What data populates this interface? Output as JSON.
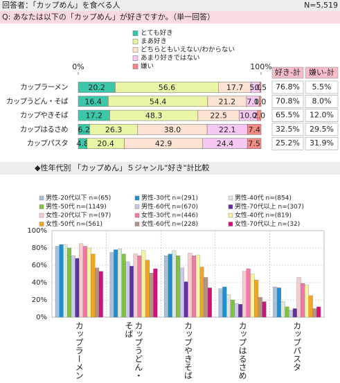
{
  "header": {
    "respondents": "回答者：「カップめん」を食べる人",
    "n": "N=5,519"
  },
  "question": "Q:  あなたは以下の「カップめん」が好きですか。（単一回答）",
  "chart_data": [
    {
      "type": "stacked",
      "categories": [
        "カップラーメン",
        "カップうどん・そば",
        "カップやきそば",
        "カップはるさめ",
        "カップパスタ"
      ],
      "xlim": [
        0,
        100
      ],
      "xticks": [
        {
          "value": 0,
          "label": "0%"
        },
        {
          "value": 100,
          "label": "100%"
        }
      ],
      "series": [
        {
          "name": "とても好き",
          "color": "#3cc8a8",
          "values": [
            20.2,
            16.4,
            17.2,
            6.2,
            4.8
          ],
          "value_labels": [
            "20.2",
            "16.4",
            "17.2",
            "6.2",
            "4.8"
          ]
        },
        {
          "name": "まあ好き",
          "color": "#eaf5a6",
          "values": [
            56.6,
            54.4,
            48.3,
            26.3,
            20.4
          ],
          "value_labels": [
            "56.6",
            "54.4",
            "48.3",
            "26.3",
            "20.4"
          ]
        },
        {
          "name": "どちらともいえない/わからない",
          "color": "#fde3d4",
          "values": [
            17.7,
            21.2,
            22.5,
            38.0,
            42.9
          ],
          "value_labels": [
            "17.7",
            "21.2",
            "22.5",
            "38.0",
            "42.9"
          ]
        },
        {
          "name": "あまり好きではない",
          "color": "#f7c8f2",
          "values": [
            5.0,
            7.0,
            10.0,
            22.1,
            24.4
          ],
          "value_labels": [
            "5.0",
            "7.0",
            "10.0",
            "22.1",
            "24.4"
          ]
        },
        {
          "name": "嫌い",
          "color": "#f28a86",
          "values": [
            0.5,
            1.0,
            2.0,
            7.4,
            7.5
          ],
          "value_labels": [
            "0.5",
            "1.0",
            "2.0",
            "7.4",
            "7.5"
          ]
        }
      ],
      "summary": {
        "headers": [
          "好き-計",
          "嫌い-計"
        ],
        "rows": [
          [
            "76.8%",
            "5.5%"
          ],
          [
            "70.8%",
            "8.0%"
          ],
          [
            "65.5%",
            "12.0%"
          ],
          [
            "32.5%",
            "29.5%"
          ],
          [
            "25.2%",
            "31.9%"
          ]
        ]
      }
    },
    {
      "type": "bar",
      "title": "◆性年代別 「カップめん」５ジャンル\"好き\"計比較",
      "categories": [
        "カップラーメン",
        "カップうどん・そば",
        "カップやきそば",
        "カップはるさめ",
        "カップパスタ"
      ],
      "ylim": [
        0,
        100
      ],
      "yticks": [
        {
          "value": 0,
          "label": "0%"
        },
        {
          "value": 20,
          "label": "20%"
        },
        {
          "value": 40,
          "label": "40%"
        },
        {
          "value": 60,
          "label": "60%"
        },
        {
          "value": 80,
          "label": "80%"
        },
        {
          "value": 100,
          "label": "100%"
        }
      ],
      "grid": true,
      "series": [
        {
          "name": "男性-20代以下 n=(65)",
          "color": "#a9c2da",
          "values": [
            82,
            75,
            71,
            33,
            35
          ]
        },
        {
          "name": "男性-30代 n=(291)",
          "color": "#1f8fd0",
          "values": [
            84,
            78,
            73,
            35,
            34
          ]
        },
        {
          "name": "男性-40代 n=(854)",
          "color": "#dde8dc",
          "values": [
            84,
            79,
            77,
            26,
            18
          ]
        },
        {
          "name": "男性-50代 n=(1149)",
          "color": "#82c242",
          "values": [
            80,
            73,
            71,
            20,
            12
          ]
        },
        {
          "name": "男性-60代 n=(670)",
          "color": "#c9c9ea",
          "values": [
            71,
            64,
            57,
            16,
            8
          ]
        },
        {
          "name": "男性-70代以上 n=(307)",
          "color": "#6030a0",
          "values": [
            68,
            59,
            41,
            15,
            10
          ]
        },
        {
          "name": "女性-20代以下 n=(97)",
          "color": "#f8cccc",
          "values": [
            85,
            73,
            74,
            53,
            46
          ]
        },
        {
          "name": "女性-30代 n=(446)",
          "color": "#f278a6",
          "values": [
            82,
            71,
            71,
            56,
            39
          ]
        },
        {
          "name": "女性-40代 n=(819)",
          "color": "#f8f2a4",
          "values": [
            80,
            77,
            72,
            50,
            37
          ]
        },
        {
          "name": "女性-50代 n=(561)",
          "color": "#f2a424",
          "values": [
            73,
            66,
            58,
            43,
            25
          ]
        },
        {
          "name": "女性-60代 n=(228)",
          "color": "#b39482",
          "values": [
            57,
            51,
            46,
            23,
            10
          ]
        },
        {
          "name": "女性-70代以上 n=(32)",
          "color": "#d4107a",
          "values": [
            53,
            56,
            34,
            18,
            12
          ]
        }
      ]
    }
  ]
}
